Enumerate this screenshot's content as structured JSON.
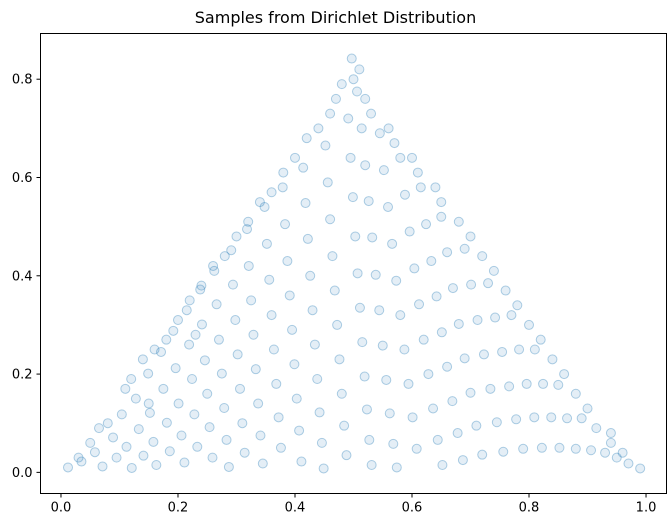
{
  "chart_data": {
    "type": "scatter",
    "title": "Samples from Dirichlet Distribution",
    "xlabel": "",
    "ylabel": "",
    "xlim": [
      -0.035,
      1.035
    ],
    "ylim": [
      -0.043,
      0.893
    ],
    "xticks": [
      0.0,
      0.2,
      0.4,
      0.6,
      0.8,
      1.0
    ],
    "xtick_labels": [
      "0.0",
      "0.2",
      "0.4",
      "0.6",
      "0.8",
      "1.0"
    ],
    "yticks": [
      0.0,
      0.2,
      0.4,
      0.6,
      0.8
    ],
    "ytick_labels": [
      "0.0",
      "0.2",
      "0.4",
      "0.6",
      "0.8"
    ],
    "grid": false,
    "marker_color": "#1f77b4",
    "marker_alpha": 0.12,
    "region": "equilateral triangle with vertices (0,0), (1,0), (0.5,0.866)",
    "points": [
      [
        0.012,
        0.01
      ],
      [
        0.035,
        0.022
      ],
      [
        0.058,
        0.041
      ],
      [
        0.071,
        0.012
      ],
      [
        0.089,
        0.071
      ],
      [
        0.095,
        0.03
      ],
      [
        0.104,
        0.118
      ],
      [
        0.112,
        0.052
      ],
      [
        0.121,
        0.009
      ],
      [
        0.128,
        0.15
      ],
      [
        0.133,
        0.088
      ],
      [
        0.141,
        0.034
      ],
      [
        0.149,
        0.201
      ],
      [
        0.152,
        0.121
      ],
      [
        0.158,
        0.062
      ],
      [
        0.163,
        0.015
      ],
      [
        0.171,
        0.245
      ],
      [
        0.175,
        0.17
      ],
      [
        0.181,
        0.101
      ],
      [
        0.186,
        0.043
      ],
      [
        0.192,
        0.288
      ],
      [
        0.196,
        0.212
      ],
      [
        0.201,
        0.14
      ],
      [
        0.206,
        0.075
      ],
      [
        0.211,
        0.02
      ],
      [
        0.215,
        0.33
      ],
      [
        0.219,
        0.26
      ],
      [
        0.224,
        0.19
      ],
      [
        0.228,
        0.118
      ],
      [
        0.233,
        0.052
      ],
      [
        0.238,
        0.372
      ],
      [
        0.241,
        0.301
      ],
      [
        0.246,
        0.228
      ],
      [
        0.25,
        0.16
      ],
      [
        0.254,
        0.092
      ],
      [
        0.259,
        0.03
      ],
      [
        0.262,
        0.41
      ],
      [
        0.266,
        0.342
      ],
      [
        0.27,
        0.27
      ],
      [
        0.275,
        0.201
      ],
      [
        0.279,
        0.131
      ],
      [
        0.283,
        0.066
      ],
      [
        0.287,
        0.011
      ],
      [
        0.291,
        0.452
      ],
      [
        0.294,
        0.382
      ],
      [
        0.298,
        0.31
      ],
      [
        0.302,
        0.24
      ],
      [
        0.306,
        0.17
      ],
      [
        0.31,
        0.1
      ],
      [
        0.314,
        0.04
      ],
      [
        0.318,
        0.495
      ],
      [
        0.321,
        0.42
      ],
      [
        0.325,
        0.35
      ],
      [
        0.329,
        0.28
      ],
      [
        0.333,
        0.21
      ],
      [
        0.337,
        0.14
      ],
      [
        0.341,
        0.075
      ],
      [
        0.345,
        0.018
      ],
      [
        0.348,
        0.54
      ],
      [
        0.352,
        0.465
      ],
      [
        0.356,
        0.392
      ],
      [
        0.36,
        0.32
      ],
      [
        0.364,
        0.25
      ],
      [
        0.368,
        0.18
      ],
      [
        0.372,
        0.112
      ],
      [
        0.376,
        0.05
      ],
      [
        0.379,
        0.58
      ],
      [
        0.383,
        0.505
      ],
      [
        0.387,
        0.43
      ],
      [
        0.391,
        0.36
      ],
      [
        0.395,
        0.29
      ],
      [
        0.399,
        0.22
      ],
      [
        0.403,
        0.15
      ],
      [
        0.407,
        0.085
      ],
      [
        0.411,
        0.022
      ],
      [
        0.414,
        0.62
      ],
      [
        0.418,
        0.548
      ],
      [
        0.422,
        0.475
      ],
      [
        0.426,
        0.4
      ],
      [
        0.43,
        0.33
      ],
      [
        0.434,
        0.26
      ],
      [
        0.438,
        0.19
      ],
      [
        0.442,
        0.122
      ],
      [
        0.446,
        0.06
      ],
      [
        0.449,
        0.008
      ],
      [
        0.452,
        0.665
      ],
      [
        0.456,
        0.59
      ],
      [
        0.46,
        0.515
      ],
      [
        0.464,
        0.44
      ],
      [
        0.468,
        0.37
      ],
      [
        0.472,
        0.3
      ],
      [
        0.476,
        0.23
      ],
      [
        0.48,
        0.16
      ],
      [
        0.484,
        0.095
      ],
      [
        0.488,
        0.035
      ],
      [
        0.491,
        0.72
      ],
      [
        0.495,
        0.64
      ],
      [
        0.499,
        0.56
      ],
      [
        0.503,
        0.48
      ],
      [
        0.507,
        0.405
      ],
      [
        0.511,
        0.335
      ],
      [
        0.515,
        0.265
      ],
      [
        0.519,
        0.195
      ],
      [
        0.523,
        0.128
      ],
      [
        0.527,
        0.066
      ],
      [
        0.531,
        0.015
      ],
      [
        0.5,
        0.8
      ],
      [
        0.497,
        0.842
      ],
      [
        0.506,
        0.775
      ],
      [
        0.514,
        0.7
      ],
      [
        0.52,
        0.625
      ],
      [
        0.526,
        0.552
      ],
      [
        0.532,
        0.478
      ],
      [
        0.538,
        0.402
      ],
      [
        0.544,
        0.33
      ],
      [
        0.55,
        0.258
      ],
      [
        0.556,
        0.188
      ],
      [
        0.562,
        0.12
      ],
      [
        0.568,
        0.058
      ],
      [
        0.574,
        0.01
      ],
      [
        0.545,
        0.69
      ],
      [
        0.552,
        0.615
      ],
      [
        0.559,
        0.54
      ],
      [
        0.566,
        0.465
      ],
      [
        0.573,
        0.39
      ],
      [
        0.58,
        0.32
      ],
      [
        0.587,
        0.25
      ],
      [
        0.594,
        0.18
      ],
      [
        0.601,
        0.112
      ],
      [
        0.608,
        0.048
      ],
      [
        0.58,
        0.64
      ],
      [
        0.588,
        0.565
      ],
      [
        0.596,
        0.49
      ],
      [
        0.604,
        0.415
      ],
      [
        0.612,
        0.342
      ],
      [
        0.62,
        0.27
      ],
      [
        0.628,
        0.2
      ],
      [
        0.636,
        0.13
      ],
      [
        0.644,
        0.066
      ],
      [
        0.652,
        0.015
      ],
      [
        0.615,
        0.58
      ],
      [
        0.624,
        0.505
      ],
      [
        0.633,
        0.43
      ],
      [
        0.642,
        0.358
      ],
      [
        0.651,
        0.285
      ],
      [
        0.66,
        0.215
      ],
      [
        0.669,
        0.145
      ],
      [
        0.678,
        0.08
      ],
      [
        0.687,
        0.025
      ],
      [
        0.65,
        0.52
      ],
      [
        0.66,
        0.448
      ],
      [
        0.67,
        0.375
      ],
      [
        0.68,
        0.302
      ],
      [
        0.69,
        0.232
      ],
      [
        0.7,
        0.162
      ],
      [
        0.71,
        0.095
      ],
      [
        0.72,
        0.036
      ],
      [
        0.69,
        0.455
      ],
      [
        0.701,
        0.382
      ],
      [
        0.712,
        0.31
      ],
      [
        0.723,
        0.24
      ],
      [
        0.734,
        0.17
      ],
      [
        0.745,
        0.102
      ],
      [
        0.756,
        0.042
      ],
      [
        0.73,
        0.385
      ],
      [
        0.742,
        0.315
      ],
      [
        0.754,
        0.245
      ],
      [
        0.766,
        0.175
      ],
      [
        0.778,
        0.108
      ],
      [
        0.79,
        0.048
      ],
      [
        0.77,
        0.32
      ],
      [
        0.783,
        0.25
      ],
      [
        0.796,
        0.18
      ],
      [
        0.809,
        0.112
      ],
      [
        0.822,
        0.05
      ],
      [
        0.81,
        0.25
      ],
      [
        0.824,
        0.18
      ],
      [
        0.838,
        0.112
      ],
      [
        0.852,
        0.05
      ],
      [
        0.85,
        0.178
      ],
      [
        0.865,
        0.11
      ],
      [
        0.88,
        0.048
      ],
      [
        0.89,
        0.11
      ],
      [
        0.906,
        0.045
      ],
      [
        0.93,
        0.04
      ],
      [
        0.95,
        0.03
      ],
      [
        0.97,
        0.018
      ],
      [
        0.99,
        0.008
      ],
      [
        0.915,
        0.09
      ],
      [
        0.94,
        0.06
      ],
      [
        0.12,
        0.19
      ],
      [
        0.16,
        0.25
      ],
      [
        0.2,
        0.31
      ],
      [
        0.24,
        0.38
      ],
      [
        0.28,
        0.44
      ],
      [
        0.32,
        0.51
      ],
      [
        0.36,
        0.57
      ],
      [
        0.4,
        0.64
      ],
      [
        0.44,
        0.7
      ],
      [
        0.47,
        0.76
      ],
      [
        0.52,
        0.76
      ],
      [
        0.56,
        0.7
      ],
      [
        0.6,
        0.64
      ],
      [
        0.64,
        0.58
      ],
      [
        0.68,
        0.51
      ],
      [
        0.72,
        0.44
      ],
      [
        0.76,
        0.37
      ],
      [
        0.8,
        0.3
      ],
      [
        0.84,
        0.23
      ],
      [
        0.88,
        0.16
      ],
      [
        0.05,
        0.06
      ],
      [
        0.08,
        0.1
      ],
      [
        0.11,
        0.17
      ],
      [
        0.14,
        0.23
      ],
      [
        0.18,
        0.27
      ],
      [
        0.22,
        0.35
      ],
      [
        0.26,
        0.42
      ],
      [
        0.3,
        0.48
      ],
      [
        0.34,
        0.55
      ],
      [
        0.38,
        0.61
      ],
      [
        0.42,
        0.68
      ],
      [
        0.46,
        0.73
      ],
      [
        0.48,
        0.79
      ],
      [
        0.51,
        0.82
      ],
      [
        0.53,
        0.73
      ],
      [
        0.57,
        0.67
      ],
      [
        0.61,
        0.61
      ],
      [
        0.65,
        0.55
      ],
      [
        0.7,
        0.48
      ],
      [
        0.74,
        0.41
      ],
      [
        0.78,
        0.34
      ],
      [
        0.82,
        0.27
      ],
      [
        0.86,
        0.2
      ],
      [
        0.9,
        0.13
      ],
      [
        0.94,
        0.08
      ],
      [
        0.96,
        0.04
      ],
      [
        0.03,
        0.03
      ],
      [
        0.065,
        0.09
      ],
      [
        0.15,
        0.14
      ],
      [
        0.23,
        0.28
      ]
    ]
  }
}
